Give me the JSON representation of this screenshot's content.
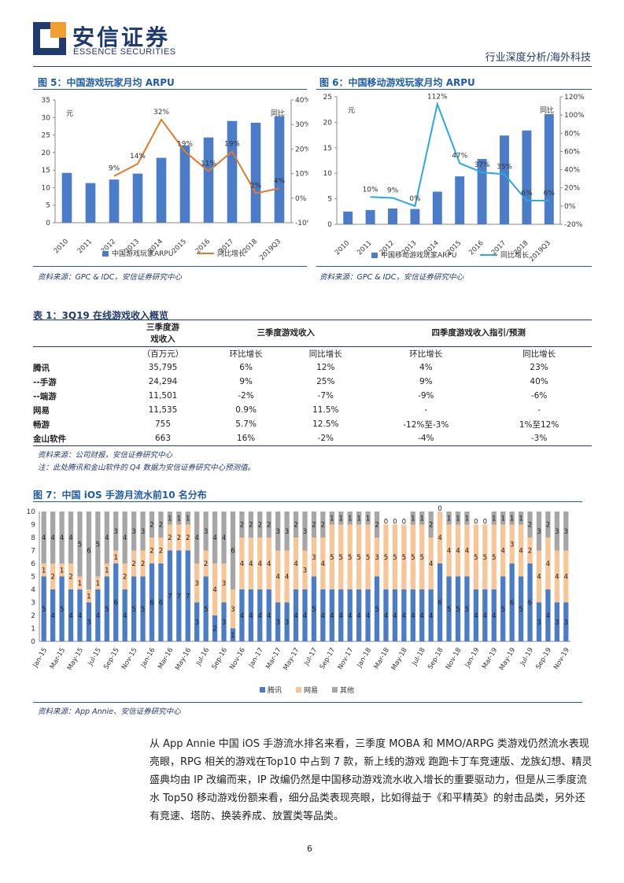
{
  "header": {
    "brand_cn": "安信证券",
    "brand_en": "ESSENCE SECURITIES",
    "section": "行业深度分析/海外科技"
  },
  "fig5": {
    "title": "图 5：中国游戏玩家月均 ARPU",
    "source": "资料来源：GPC & IDC，安信证券研究中心",
    "unit_left": "元",
    "unit_right": "同比",
    "legend_bar": "中国游戏玩家ARPU",
    "legend_line": "同比增长"
  },
  "fig6": {
    "title": "图 6：中国移动游戏玩家月均 ARPU",
    "source": "资料来源：GPC & IDC，安信证券研究中心",
    "unit_left": "元",
    "unit_right": "同比",
    "legend_bar": "中国移动游戏玩家ARPU",
    "legend_line": "同比增长"
  },
  "table1": {
    "title": "表 1：3Q19 在线游戏收入概览",
    "header": {
      "col1a": "三季度游",
      "col1b": "戏收入",
      "group2": "三季度游戏收入",
      "group3": "四季度游戏收入指引/预测",
      "unit": "（百万元）",
      "qoq": "环比增长",
      "yoy": "同比增长",
      "qoq2": "环比增长",
      "yoy2": "同比增长"
    },
    "rows": [
      {
        "name": "腾讯",
        "rev": "35,795",
        "qoq": "6%",
        "yoy": "12%",
        "qoq4": "4%",
        "yoy4": "23%"
      },
      {
        "name": "--手游",
        "rev": "24,294",
        "qoq": "9%",
        "yoy": "25%",
        "qoq4": "9%",
        "yoy4": "40%"
      },
      {
        "name": "--端游",
        "rev": "11,501",
        "qoq": "-2%",
        "yoy": "-7%",
        "qoq4": "-9%",
        "yoy4": "-6%"
      },
      {
        "name": "网易",
        "rev": "11,535",
        "qoq": "0.9%",
        "yoy": "11.5%",
        "qoq4": "-",
        "yoy4": "-"
      },
      {
        "name": "畅游",
        "rev": "755",
        "qoq": "5.7%",
        "yoy": "12.5%",
        "qoq4": "-12%至-3%",
        "yoy4": "1%至12%"
      },
      {
        "name": "金山软件",
        "rev": "663",
        "qoq": "16%",
        "yoy": "-2%",
        "qoq4": "-4%",
        "yoy4": "-3%"
      }
    ],
    "source": "资料来源：公司财报，安信证券研究中心",
    "note": "注：此处腾讯和金山软件的 Q4 数据为安信证券研究中心预测值。"
  },
  "fig7": {
    "title": "图 7：中国 iOS 手游月流水前10 名分布",
    "source": "资料来源：App Annie、安信证券研究中心",
    "legend": [
      "腾讯",
      "网易",
      "其他"
    ]
  },
  "paragraph": "从 App Annie 中国 iOS 手游流水排名来看，三季度 MOBA 和 MMO/ARPG 类游戏仍然流水表现亮眼，RPG 相关的游戏在Top10 中占到 7 款，新上线的游戏 跑跑卡丁车竞速版、龙族幻想、精灵盛典均由 IP 改编而来，IP 改编仍然是中国移动游戏流水收入增长的重要驱动力，但是从三季度流水 Top50 移动游戏份额来看，细分品类表现亮眼，比如得益于《和平精英》的射击品类，另外还有竞速、塔防、换装养成、放置类等品类。",
  "page_number": "6",
  "colors": {
    "bar": "#4a7cc7",
    "line5": "#e07b2a",
    "line6": "#2aa8e0",
    "tencent": "#4a7cc7",
    "netease": "#f7c596",
    "other": "#a6a6a6"
  },
  "chart_data": [
    {
      "type": "bar",
      "categories": [
        "2010",
        "2011",
        "2012",
        "2013",
        "2014",
        "2015",
        "2016",
        "2017",
        "2018",
        "2019Q3"
      ],
      "series": [
        {
          "name": "中国游戏玩家ARPU",
          "values": [
            14.2,
            11.3,
            12.3,
            14.0,
            18.5,
            22.0,
            24.3,
            29.0,
            28.5,
            30.3
          ],
          "axis": "left"
        },
        {
          "name": "同比增长",
          "type": "line",
          "values": [
            null,
            null,
            9,
            14,
            32,
            19,
            11,
            19,
            2,
            4
          ],
          "axis": "right"
        }
      ],
      "data_labels": [
        "9%",
        "14%",
        "32%",
        "19%",
        "11%",
        "19%",
        "2%",
        "4%"
      ],
      "ylim": [
        0,
        35
      ],
      "y2lim": [
        -10,
        40
      ],
      "yticks": [
        0,
        5,
        10,
        15,
        20,
        25,
        30,
        35
      ],
      "y2ticks": [
        "-10%",
        "0%",
        "10%",
        "20%",
        "30%",
        "40%"
      ]
    },
    {
      "type": "bar",
      "categories": [
        "2010",
        "2011",
        "2012",
        "2013",
        "2014",
        "2015",
        "2016",
        "2017",
        "2018",
        "2019Q3"
      ],
      "series": [
        {
          "name": "中国移动游戏玩家ARPU",
          "values": [
            2.5,
            2.8,
            3.1,
            3.0,
            6.4,
            9.4,
            12.8,
            17.4,
            18.4,
            21.6
          ],
          "axis": "left"
        },
        {
          "name": "同比增长",
          "type": "line",
          "values": [
            null,
            10,
            9,
            0,
            112,
            47,
            37,
            35,
            6,
            6
          ],
          "axis": "right"
        }
      ],
      "data_labels": [
        "10%",
        "9%",
        "0%",
        "112%",
        "47%",
        "37%",
        "35%",
        "6%",
        "6%"
      ],
      "ylim": [
        0,
        25
      ],
      "y2lim": [
        -20,
        120
      ],
      "yticks": [
        0,
        5,
        10,
        15,
        20,
        25
      ],
      "y2ticks": [
        "-20%",
        "0%",
        "20%",
        "40%",
        "60%",
        "80%",
        "100%",
        "120%"
      ]
    },
    {
      "type": "bar",
      "stacked": true,
      "ylim": [
        0,
        10
      ],
      "x": [
        "Jan-15",
        "Feb-15",
        "Mar-15",
        "Apr-15",
        "May-15",
        "Jun-15",
        "Jul-15",
        "Aug-15",
        "Sep-15",
        "Oct-15",
        "Nov-15",
        "Dec-15",
        "Jan-16",
        "Feb-16",
        "Mar-16",
        "Apr-16",
        "May-16",
        "Jun-16",
        "Jul-16",
        "Aug-16",
        "Sep-16",
        "Oct-16",
        "Nov-16",
        "Dec-16",
        "Jan-17",
        "Feb-17",
        "Mar-17",
        "Apr-17",
        "May-17",
        "Jun-17",
        "Jul-17",
        "Aug-17",
        "Sep-17",
        "Oct-17",
        "Nov-17",
        "Dec-17",
        "Jan-18",
        "Feb-18",
        "Mar-18",
        "Apr-18",
        "May-18",
        "Jun-18",
        "Jul-18",
        "Aug-18",
        "Sep-18",
        "Oct-18",
        "Nov-18",
        "Dec-18",
        "Jan-19",
        "Feb-19",
        "Mar-19",
        "Apr-19",
        "May-19",
        "Jun-19",
        "Jul-19",
        "Aug-19",
        "Sep-19",
        "Oct-19",
        "Nov-19"
      ],
      "xtick_labels": [
        "Jan-15",
        "Mar-15",
        "May-15",
        "Jul-15",
        "Sep-15",
        "Nov-15",
        "Jan-16",
        "Mar-16",
        "May-16",
        "Jul-16",
        "Sep-16",
        "Nov-16",
        "Jan-17",
        "Mar-17",
        "May-17",
        "Jul-17",
        "Sep-17",
        "Nov-17",
        "Jan-18",
        "Mar-18",
        "May-18",
        "Jul-18",
        "Sep-18",
        "Nov-18",
        "Jan-19",
        "Mar-19",
        "May-19",
        "Jul-19",
        "Sep-19",
        "Nov-19"
      ],
      "series": [
        {
          "name": "腾讯",
          "values": [
            5,
            4,
            5,
            4,
            4,
            3,
            4,
            5,
            6,
            4,
            5,
            5,
            6,
            6,
            7,
            7,
            7,
            3,
            5,
            2,
            3,
            1,
            4,
            4,
            4,
            4,
            3,
            3,
            4,
            4,
            5,
            4,
            4,
            4,
            4,
            4,
            4,
            5,
            4,
            4,
            4,
            4,
            4,
            4,
            6,
            5,
            5,
            5,
            4,
            4,
            4,
            5,
            6,
            5,
            6,
            3,
            4,
            3,
            3
          ]
        },
        {
          "name": "网易",
          "values": [
            1,
            2,
            1,
            2,
            1,
            1,
            1,
            1,
            1,
            2,
            2,
            2,
            2,
            2,
            2,
            2,
            2,
            3,
            2,
            4,
            3,
            3,
            4,
            4,
            4,
            4,
            4,
            4,
            4,
            3,
            3,
            4,
            5,
            5,
            5,
            5,
            5,
            3,
            5,
            5,
            5,
            5,
            5,
            4,
            4,
            4,
            4,
            4,
            5,
            5,
            5,
            4,
            3,
            4,
            2,
            4,
            4,
            4,
            4
          ]
        },
        {
          "name": "其他",
          "values": [
            4,
            4,
            4,
            4,
            5,
            6,
            5,
            4,
            3,
            4,
            3,
            3,
            2,
            2,
            1,
            1,
            1,
            4,
            3,
            4,
            4,
            6,
            2,
            2,
            2,
            2,
            3,
            3,
            2,
            3,
            2,
            2,
            1,
            1,
            1,
            1,
            1,
            2,
            0,
            0,
            0,
            1,
            1,
            2,
            0,
            1,
            1,
            1,
            0,
            0,
            1,
            1,
            1,
            1,
            2,
            3,
            2,
            3,
            3
          ]
        }
      ]
    }
  ]
}
